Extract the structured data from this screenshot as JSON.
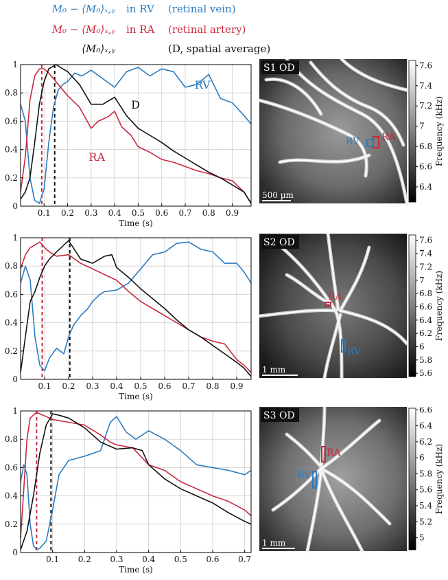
{
  "legend": [
    {
      "math": "M₀ − ⟨M₀⟩ₓ,ᵧ",
      "loc": "in RV",
      "desc": "(retinal vein)",
      "color": "#2b7bc0"
    },
    {
      "math": "M₀ − ⟨M₀⟩ₓ,ᵧ",
      "loc": "in RA",
      "desc": "(retinal artery)",
      "color": "#c8283c"
    },
    {
      "math": "⟨M₀⟩ₓ,ᵧ",
      "loc": "",
      "desc": "(D, spatial average)",
      "color": "#111111"
    }
  ],
  "colors": {
    "rv": "#2b7bc0",
    "ra": "#c8283c",
    "d": "#111111"
  },
  "chart_data": [
    {
      "type": "line",
      "xlabel": "Time (s)",
      "xlim": [
        0,
        0.98
      ],
      "ylim": [
        0,
        1
      ],
      "xticks": [
        0.1,
        0.2,
        0.3,
        0.4,
        0.5,
        0.6,
        0.7,
        0.8,
        0.9
      ],
      "xtick_labels": [
        "0.1",
        "0.2",
        "0.3",
        "0.4",
        "0.5",
        "0.6",
        "0.7",
        "0.8",
        "0.9"
      ],
      "yticks": [
        0,
        0.2,
        0.4,
        0.6,
        0.8,
        1
      ],
      "ytick_labels": [
        "0",
        "0.2",
        "0.4",
        "0.6",
        "0.8",
        "1"
      ],
      "grid": true,
      "vlines": [
        {
          "x": 0.09,
          "color": "#c8283c"
        },
        {
          "x": 0.145,
          "color": "#111111"
        }
      ],
      "series": [
        {
          "name": "RV",
          "color": "#2b7bc0",
          "x": [
            0,
            0.02,
            0.04,
            0.06,
            0.08,
            0.1,
            0.12,
            0.14,
            0.16,
            0.18,
            0.2,
            0.23,
            0.26,
            0.3,
            0.35,
            0.4,
            0.45,
            0.5,
            0.55,
            0.6,
            0.65,
            0.7,
            0.75,
            0.8,
            0.85,
            0.9,
            0.95,
            0.98
          ],
          "y": [
            0.72,
            0.6,
            0.2,
            0.04,
            0.02,
            0.12,
            0.45,
            0.7,
            0.82,
            0.86,
            0.88,
            0.94,
            0.92,
            0.96,
            0.9,
            0.84,
            0.95,
            0.98,
            0.92,
            0.97,
            0.95,
            0.84,
            0.86,
            0.93,
            0.76,
            0.73,
            0.64,
            0.58
          ]
        },
        {
          "name": "RA",
          "color": "#c8283c",
          "x": [
            0,
            0.02,
            0.04,
            0.06,
            0.08,
            0.1,
            0.12,
            0.15,
            0.2,
            0.25,
            0.3,
            0.33,
            0.37,
            0.4,
            0.43,
            0.47,
            0.5,
            0.55,
            0.6,
            0.65,
            0.7,
            0.75,
            0.8,
            0.85,
            0.9,
            0.95,
            0.98
          ],
          "y": [
            0.1,
            0.35,
            0.75,
            0.92,
            0.97,
            0.97,
            0.94,
            0.88,
            0.78,
            0.7,
            0.55,
            0.6,
            0.63,
            0.67,
            0.56,
            0.5,
            0.42,
            0.38,
            0.33,
            0.31,
            0.28,
            0.25,
            0.23,
            0.2,
            0.18,
            0.1,
            0.02
          ]
        },
        {
          "name": "D",
          "color": "#111111",
          "x": [
            0,
            0.02,
            0.04,
            0.06,
            0.08,
            0.1,
            0.12,
            0.15,
            0.2,
            0.25,
            0.3,
            0.35,
            0.4,
            0.45,
            0.5,
            0.55,
            0.6,
            0.65,
            0.7,
            0.75,
            0.8,
            0.85,
            0.9,
            0.95,
            0.98
          ],
          "y": [
            0.05,
            0.1,
            0.2,
            0.45,
            0.72,
            0.88,
            0.97,
            1.0,
            0.95,
            0.86,
            0.72,
            0.72,
            0.77,
            0.64,
            0.55,
            0.5,
            0.45,
            0.39,
            0.34,
            0.29,
            0.24,
            0.2,
            0.15,
            0.1,
            0.02
          ]
        }
      ],
      "annotations": [
        {
          "text": "RV",
          "x": 0.74,
          "y": 0.83,
          "color": "#2b7bc0"
        },
        {
          "text": "D",
          "x": 0.47,
          "y": 0.69,
          "color": "#111111"
        },
        {
          "text": "RA",
          "x": 0.29,
          "y": 0.32,
          "color": "#c8283c"
        }
      ]
    },
    {
      "type": "line",
      "xlabel": "Time (s)",
      "xlim": [
        0,
        0.96
      ],
      "ylim": [
        0,
        1
      ],
      "xticks": [
        0.1,
        0.2,
        0.3,
        0.4,
        0.5,
        0.6,
        0.7,
        0.8,
        0.9
      ],
      "xtick_labels": [
        "0.1",
        "0.2",
        "0.3",
        "0.4",
        "0.5",
        "0.6",
        "0.7",
        "0.8",
        "0.9"
      ],
      "yticks": [
        0,
        0.2,
        0.4,
        0.6,
        0.8,
        1
      ],
      "ytick_labels": [
        "0",
        "0.2",
        "0.4",
        "0.6",
        "0.8",
        "1"
      ],
      "grid": true,
      "vlines": [
        {
          "x": 0.09,
          "color": "#c8283c"
        },
        {
          "x": 0.205,
          "color": "#111111"
        }
      ],
      "series": [
        {
          "name": "RV",
          "color": "#2b7bc0",
          "x": [
            0,
            0.02,
            0.04,
            0.06,
            0.08,
            0.1,
            0.12,
            0.15,
            0.18,
            0.2,
            0.22,
            0.25,
            0.28,
            0.3,
            0.33,
            0.35,
            0.4,
            0.45,
            0.5,
            0.55,
            0.6,
            0.65,
            0.7,
            0.75,
            0.8,
            0.85,
            0.9,
            0.93,
            0.96
          ],
          "y": [
            0.68,
            0.8,
            0.7,
            0.3,
            0.1,
            0.06,
            0.15,
            0.22,
            0.18,
            0.3,
            0.38,
            0.45,
            0.5,
            0.55,
            0.6,
            0.62,
            0.63,
            0.68,
            0.78,
            0.88,
            0.9,
            0.96,
            0.97,
            0.92,
            0.9,
            0.82,
            0.82,
            0.76,
            0.68
          ]
        },
        {
          "name": "RA",
          "color": "#c8283c",
          "x": [
            0,
            0.02,
            0.04,
            0.06,
            0.08,
            0.1,
            0.12,
            0.15,
            0.2,
            0.25,
            0.3,
            0.35,
            0.4,
            0.45,
            0.5,
            0.55,
            0.6,
            0.65,
            0.7,
            0.75,
            0.8,
            0.85,
            0.9,
            0.93,
            0.96
          ],
          "y": [
            0.78,
            0.88,
            0.93,
            0.95,
            0.97,
            0.93,
            0.9,
            0.87,
            0.88,
            0.82,
            0.78,
            0.74,
            0.7,
            0.62,
            0.55,
            0.5,
            0.45,
            0.4,
            0.35,
            0.3,
            0.27,
            0.25,
            0.14,
            0.1,
            0.05
          ]
        },
        {
          "name": "D",
          "color": "#111111",
          "x": [
            0,
            0.02,
            0.04,
            0.06,
            0.08,
            0.1,
            0.12,
            0.15,
            0.2,
            0.25,
            0.3,
            0.35,
            0.38,
            0.4,
            0.45,
            0.5,
            0.55,
            0.6,
            0.65,
            0.7,
            0.75,
            0.8,
            0.85,
            0.9,
            0.93,
            0.96
          ],
          "y": [
            0.05,
            0.3,
            0.55,
            0.62,
            0.72,
            0.8,
            0.85,
            0.9,
            0.98,
            0.85,
            0.82,
            0.87,
            0.88,
            0.79,
            0.72,
            0.64,
            0.57,
            0.5,
            0.42,
            0.35,
            0.3,
            0.24,
            0.18,
            0.12,
            0.08,
            0.02
          ]
        }
      ]
    },
    {
      "type": "line",
      "xlabel": "Time (s)",
      "xlim": [
        0,
        0.72
      ],
      "ylim": [
        0,
        1
      ],
      "xticks": [
        0.1,
        0.2,
        0.3,
        0.4,
        0.5,
        0.6,
        0.7
      ],
      "xtick_labels": [
        "0.1",
        "0.2",
        "0.3",
        "0.4",
        "0.5",
        "0.6",
        "0.7"
      ],
      "yticks": [
        0,
        0.2,
        0.4,
        0.6,
        0.8,
        1
      ],
      "ytick_labels": [
        "0",
        "0.2",
        "0.4",
        "0.6",
        "0.8",
        "1"
      ],
      "grid": true,
      "vlines": [
        {
          "x": 0.05,
          "color": "#c8283c"
        },
        {
          "x": 0.095,
          "color": "#111111"
        }
      ],
      "series": [
        {
          "name": "RV",
          "color": "#2b7bc0",
          "x": [
            0,
            0.01,
            0.02,
            0.03,
            0.04,
            0.05,
            0.06,
            0.08,
            0.1,
            0.12,
            0.15,
            0.2,
            0.25,
            0.28,
            0.3,
            0.33,
            0.36,
            0.4,
            0.45,
            0.5,
            0.55,
            0.6,
            0.65,
            0.7,
            0.72
          ],
          "y": [
            0.5,
            0.62,
            0.55,
            0.2,
            0.05,
            0.02,
            0.03,
            0.08,
            0.3,
            0.55,
            0.65,
            0.68,
            0.72,
            0.92,
            0.96,
            0.85,
            0.8,
            0.86,
            0.8,
            0.72,
            0.62,
            0.6,
            0.58,
            0.55,
            0.58
          ]
        },
        {
          "name": "RA",
          "color": "#c8283c",
          "x": [
            0,
            0.01,
            0.02,
            0.03,
            0.04,
            0.05,
            0.06,
            0.08,
            0.1,
            0.15,
            0.2,
            0.25,
            0.28,
            0.3,
            0.35,
            0.4,
            0.45,
            0.5,
            0.55,
            0.6,
            0.65,
            0.7,
            0.72
          ],
          "y": [
            0.1,
            0.45,
            0.8,
            0.95,
            0.97,
            0.99,
            0.98,
            0.96,
            0.94,
            0.92,
            0.9,
            0.83,
            0.78,
            0.76,
            0.74,
            0.62,
            0.58,
            0.5,
            0.45,
            0.4,
            0.36,
            0.3,
            0.26
          ]
        },
        {
          "name": "D",
          "color": "#111111",
          "x": [
            0,
            0.02,
            0.04,
            0.06,
            0.08,
            0.1,
            0.12,
            0.15,
            0.2,
            0.25,
            0.3,
            0.35,
            0.38,
            0.4,
            0.45,
            0.5,
            0.55,
            0.6,
            0.65,
            0.7,
            0.72
          ],
          "y": [
            0.02,
            0.15,
            0.4,
            0.7,
            0.9,
            0.98,
            0.97,
            0.95,
            0.88,
            0.78,
            0.73,
            0.74,
            0.72,
            0.62,
            0.52,
            0.45,
            0.4,
            0.35,
            0.28,
            0.22,
            0.2
          ]
        }
      ]
    }
  ],
  "maps": [
    {
      "label": "S1 OD",
      "scalebar": "500 µm",
      "cbar_label": "Frequency (kHz)",
      "cbar_ticks": [
        "7.6",
        "7.4",
        "7.2",
        "7",
        "6.8",
        "6.6",
        "6.4"
      ],
      "cbar_range": [
        6.25,
        7.65
      ],
      "rv_label": "RV",
      "ra_label": "RA"
    },
    {
      "label": "S2 OD",
      "scalebar": "1 mm",
      "cbar_label": "Frequency (kHz)",
      "cbar_ticks": [
        "7.6",
        "7.4",
        "7.2",
        "7",
        "6.8",
        "6.6",
        "6.4",
        "6.2",
        "6",
        "5.8",
        "5.6"
      ],
      "cbar_range": [
        5.55,
        7.68
      ],
      "rv_label": "RV",
      "ra_label": "RA"
    },
    {
      "label": "S3 OD",
      "scalebar": "1 mm",
      "cbar_label": "Frequency (kHz)",
      "cbar_ticks": [
        "6.6",
        "6.4",
        "6.2",
        "6",
        "5.8",
        "5.6",
        "5.4",
        "5.2",
        "5"
      ],
      "cbar_range": [
        4.85,
        6.62
      ],
      "rv_label": "RV",
      "ra_label": "RA"
    }
  ]
}
